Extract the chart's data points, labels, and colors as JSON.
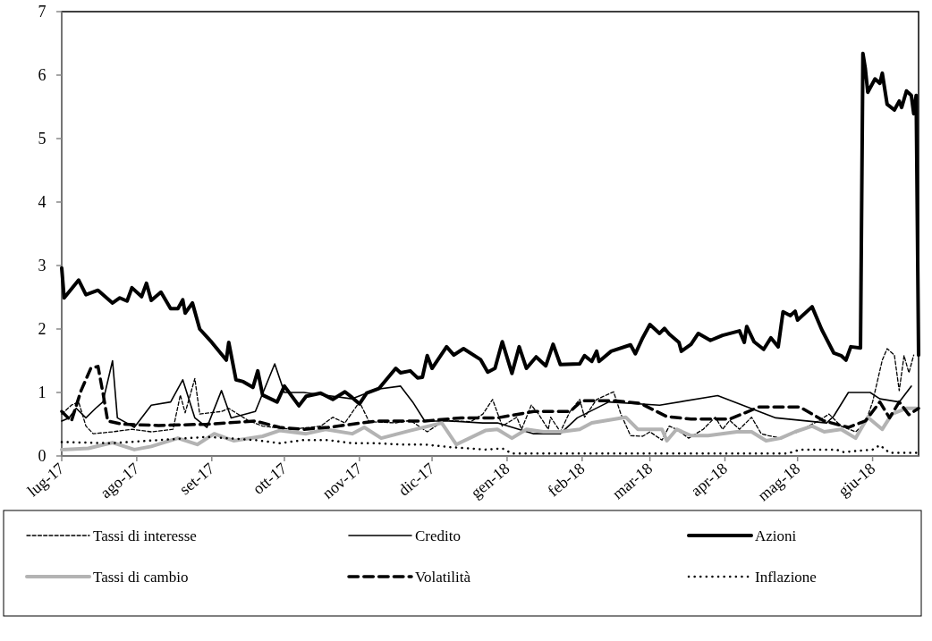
{
  "chart_data": {
    "type": "line",
    "xlim": [
      "2017-07-01",
      "2018-06-20"
    ],
    "xticks": [
      {
        "value": "2017-07-01",
        "label": "lug-17"
      },
      {
        "value": "2017-08-01",
        "label": "ago-17"
      },
      {
        "value": "2017-09-01",
        "label": "set-17"
      },
      {
        "value": "2017-10-01",
        "label": "ott-17"
      },
      {
        "value": "2017-11-01",
        "label": "nov-17"
      },
      {
        "value": "2017-12-01",
        "label": "dic-17"
      },
      {
        "value": "2018-01-01",
        "label": "gen-18"
      },
      {
        "value": "2018-02-01",
        "label": "feb-18"
      },
      {
        "value": "2018-03-01",
        "label": "mar-18"
      },
      {
        "value": "2018-04-01",
        "label": "apr-18"
      },
      {
        "value": "2018-05-01",
        "label": "mag-18"
      },
      {
        "value": "2018-06-01",
        "label": "giu-18"
      }
    ],
    "ylim": [
      0,
      7
    ],
    "yticks": [
      0,
      1,
      2,
      3,
      4,
      5,
      6,
      7
    ],
    "grid": false,
    "legend": "bottom",
    "series": [
      {
        "name": "Tassi di interesse",
        "color": "#000000",
        "line_style": "dashed",
        "x": [
          "2017-07-01",
          "2017-07-05",
          "2017-07-08",
          "2017-07-11",
          "2017-07-14",
          "2017-07-22",
          "2017-07-30",
          "2017-08-07",
          "2017-08-16",
          "2017-08-19",
          "2017-08-21",
          "2017-08-25",
          "2017-08-27",
          "2017-09-05",
          "2017-09-08",
          "2017-09-16",
          "2017-09-22",
          "2017-10-04",
          "2017-10-16",
          "2017-10-21",
          "2017-10-26",
          "2017-11-01",
          "2017-11-05",
          "2017-11-16",
          "2017-11-22",
          "2017-11-29",
          "2017-12-06",
          "2017-12-17",
          "2017-12-22",
          "2017-12-26",
          "2017-12-30",
          "2018-01-05",
          "2018-01-07",
          "2018-01-11",
          "2018-01-14",
          "2018-01-18",
          "2018-01-19",
          "2018-01-23",
          "2018-01-27",
          "2018-01-31",
          "2018-02-02",
          "2018-02-07",
          "2018-02-14",
          "2018-02-17",
          "2018-02-21",
          "2018-02-26",
          "2018-03-01",
          "2018-03-06",
          "2018-03-09",
          "2018-03-12",
          "2018-03-17",
          "2018-03-23",
          "2018-03-28",
          "2018-03-31",
          "2018-04-03",
          "2018-04-07",
          "2018-04-12",
          "2018-04-16",
          "2018-04-19",
          "2018-04-24",
          "2018-05-01",
          "2018-05-10",
          "2018-05-14",
          "2018-05-19",
          "2018-05-25",
          "2018-05-29",
          "2018-06-01",
          "2018-06-05",
          "2018-06-07",
          "2018-06-10",
          "2018-06-12",
          "2018-06-14",
          "2018-06-16",
          "2018-06-18"
        ],
        "values": [
          0.66,
          0.8,
          0.85,
          0.47,
          0.35,
          0.38,
          0.42,
          0.38,
          0.42,
          0.96,
          0.68,
          1.22,
          0.66,
          0.7,
          0.75,
          0.56,
          0.47,
          0.42,
          0.47,
          0.61,
          0.52,
          0.85,
          0.54,
          0.52,
          0.56,
          0.38,
          0.56,
          0.54,
          0.66,
          0.89,
          0.47,
          0.61,
          0.42,
          0.8,
          0.66,
          0.42,
          0.61,
          0.38,
          0.7,
          0.89,
          0.61,
          0.89,
          1.01,
          0.66,
          0.32,
          0.31,
          0.38,
          0.25,
          0.47,
          0.42,
          0.28,
          0.42,
          0.61,
          0.42,
          0.56,
          0.42,
          0.61,
          0.35,
          0.32,
          0.28,
          0.38,
          0.56,
          0.66,
          0.47,
          0.38,
          0.52,
          0.85,
          1.51,
          1.69,
          1.59,
          1.03,
          1.58,
          1.31,
          1.59
        ]
      },
      {
        "name": "Credito",
        "color": "#000000",
        "line_style": "solid",
        "x": [
          "2017-07-01",
          "2017-07-04",
          "2017-07-07",
          "2017-07-11",
          "2017-07-15",
          "2017-07-18",
          "2017-07-22",
          "2017-07-24",
          "2017-07-31",
          "2017-08-07",
          "2017-08-15",
          "2017-08-20",
          "2017-08-25",
          "2017-08-30",
          "2017-09-05",
          "2017-09-09",
          "2017-09-19",
          "2017-09-27",
          "2017-10-01",
          "2017-10-09",
          "2017-10-19",
          "2017-10-29",
          "2017-11-08",
          "2017-11-18",
          "2017-11-23",
          "2017-11-28",
          "2017-12-08",
          "2017-12-22",
          "2017-12-28",
          "2018-01-12",
          "2018-01-23",
          "2018-01-30",
          "2018-02-12",
          "2018-03-05",
          "2018-03-29",
          "2018-04-22",
          "2018-05-13",
          "2018-05-16",
          "2018-05-22",
          "2018-05-31",
          "2018-06-04",
          "2018-06-12",
          "2018-06-17"
        ],
        "values": [
          0.55,
          0.6,
          0.75,
          0.6,
          0.75,
          0.85,
          1.5,
          0.6,
          0.45,
          0.8,
          0.85,
          1.2,
          0.6,
          0.45,
          1.03,
          0.6,
          0.7,
          1.45,
          1.0,
          1.0,
          0.95,
          0.9,
          1.05,
          1.1,
          0.85,
          0.55,
          0.55,
          0.52,
          0.52,
          0.35,
          0.35,
          0.6,
          0.85,
          0.8,
          0.95,
          0.6,
          0.52,
          0.63,
          1.0,
          1.0,
          0.9,
          0.85,
          1.1
        ]
      },
      {
        "name": "Azioni",
        "color": "#000000",
        "line_style": "solid",
        "x": [
          "2017-07-01",
          "2017-07-02",
          "2017-07-08",
          "2017-07-11",
          "2017-07-16",
          "2017-07-22",
          "2017-07-25",
          "2017-07-28",
          "2017-07-30",
          "2017-08-03",
          "2017-08-05",
          "2017-08-07",
          "2017-08-11",
          "2017-08-15",
          "2017-08-18",
          "2017-08-20",
          "2017-08-21",
          "2017-08-24",
          "2017-08-27",
          "2017-09-01",
          "2017-09-07",
          "2017-09-08",
          "2017-09-11",
          "2017-09-14",
          "2017-09-18",
          "2017-09-20",
          "2017-09-22",
          "2017-09-28",
          "2017-10-01",
          "2017-10-07",
          "2017-10-10",
          "2017-10-16",
          "2017-10-21",
          "2017-10-26",
          "2017-10-29",
          "2017-11-01",
          "2017-11-04",
          "2017-11-09",
          "2017-11-16",
          "2017-11-18",
          "2017-11-22",
          "2017-11-25",
          "2017-11-27",
          "2017-11-29",
          "2017-12-01",
          "2017-12-07",
          "2017-12-10",
          "2017-12-14",
          "2017-12-21",
          "2017-12-24",
          "2017-12-27",
          "2017-12-30",
          "2018-01-03",
          "2018-01-06",
          "2018-01-09",
          "2018-01-13",
          "2018-01-17",
          "2018-01-20",
          "2018-01-23",
          "2018-01-31",
          "2018-02-02",
          "2018-02-05",
          "2018-02-07",
          "2018-02-08",
          "2018-02-13",
          "2018-02-21",
          "2018-02-23",
          "2018-02-26",
          "2018-03-01",
          "2018-03-05",
          "2018-03-07",
          "2018-03-09",
          "2018-03-13",
          "2018-03-14",
          "2018-03-18",
          "2018-03-21",
          "2018-03-26",
          "2018-03-31",
          "2018-04-07",
          "2018-04-09",
          "2018-04-10",
          "2018-04-13",
          "2018-04-17",
          "2018-04-20",
          "2018-04-23",
          "2018-04-25",
          "2018-04-28",
          "2018-04-30",
          "2018-05-01",
          "2018-05-07",
          "2018-05-11",
          "2018-05-16",
          "2018-05-19",
          "2018-05-21",
          "2018-05-23",
          "2018-05-27",
          "2018-05-28",
          "2018-05-29",
          "2018-05-30",
          "2018-06-02",
          "2018-06-04",
          "2018-06-05",
          "2018-06-07",
          "2018-06-10",
          "2018-06-12",
          "2018-06-13",
          "2018-06-15",
          "2018-06-17",
          "2018-06-18",
          "2018-06-19",
          "2018-06-20"
        ],
        "values": [
          2.96,
          2.49,
          2.77,
          2.54,
          2.61,
          2.41,
          2.49,
          2.44,
          2.65,
          2.51,
          2.72,
          2.45,
          2.58,
          2.32,
          2.32,
          2.46,
          2.25,
          2.41,
          2.0,
          1.79,
          1.51,
          1.79,
          1.2,
          1.17,
          1.08,
          1.34,
          0.96,
          0.85,
          1.1,
          0.79,
          0.94,
          0.99,
          0.89,
          1.01,
          0.92,
          0.82,
          0.99,
          1.06,
          1.38,
          1.31,
          1.34,
          1.23,
          1.24,
          1.58,
          1.38,
          1.72,
          1.59,
          1.69,
          1.52,
          1.32,
          1.38,
          1.8,
          1.3,
          1.72,
          1.38,
          1.56,
          1.42,
          1.76,
          1.44,
          1.45,
          1.58,
          1.49,
          1.65,
          1.49,
          1.65,
          1.75,
          1.61,
          1.86,
          2.07,
          1.93,
          2.01,
          1.92,
          1.79,
          1.65,
          1.76,
          1.93,
          1.82,
          1.9,
          1.97,
          1.79,
          2.04,
          1.8,
          1.68,
          1.86,
          1.72,
          2.27,
          2.21,
          2.28,
          2.14,
          2.35,
          1.99,
          1.62,
          1.58,
          1.51,
          1.72,
          1.7,
          6.34,
          6.1,
          5.73,
          5.94,
          5.87,
          6.03,
          5.54,
          5.45,
          5.59,
          5.49,
          5.75,
          5.68,
          5.39,
          5.68,
          1.59
        ]
      },
      {
        "name": "Tassi di cambio",
        "color": "#b3b3b3",
        "line_style": "solid",
        "x": [
          "2017-07-01",
          "2017-07-12",
          "2017-07-22",
          "2017-07-31",
          "2017-08-07",
          "2017-08-18",
          "2017-08-26",
          "2017-09-02",
          "2017-09-10",
          "2017-09-22",
          "2017-09-29",
          "2017-10-10",
          "2017-10-18",
          "2017-10-29",
          "2017-11-03",
          "2017-11-10",
          "2017-11-22",
          "2017-12-05",
          "2017-12-11",
          "2017-12-23",
          "2017-12-28",
          "2018-01-03",
          "2018-01-09",
          "2018-01-16",
          "2018-01-23",
          "2018-01-31",
          "2018-02-05",
          "2018-02-19",
          "2018-02-24",
          "2018-03-06",
          "2018-03-08",
          "2018-03-12",
          "2018-03-18",
          "2018-03-25",
          "2018-04-06",
          "2018-04-12",
          "2018-04-18",
          "2018-04-24",
          "2018-04-30",
          "2018-05-07",
          "2018-05-12",
          "2018-05-19",
          "2018-05-25",
          "2018-05-30",
          "2018-06-05",
          "2018-06-09",
          "2018-06-15",
          "2018-06-19"
        ],
        "values": [
          0.1,
          0.12,
          0.21,
          0.1,
          0.15,
          0.28,
          0.18,
          0.35,
          0.24,
          0.31,
          0.4,
          0.35,
          0.42,
          0.35,
          0.45,
          0.28,
          0.4,
          0.52,
          0.18,
          0.4,
          0.42,
          0.28,
          0.42,
          0.38,
          0.38,
          0.42,
          0.52,
          0.61,
          0.42,
          0.42,
          0.24,
          0.42,
          0.32,
          0.32,
          0.38,
          0.38,
          0.24,
          0.28,
          0.38,
          0.47,
          0.38,
          0.42,
          0.28,
          0.61,
          0.42,
          0.66,
          0.75,
          0.75
        ]
      },
      {
        "name": "Volatilità",
        "color": "#000000",
        "line_style": "dashed",
        "x": [
          "2017-07-01",
          "2017-07-05",
          "2017-07-09",
          "2017-07-13",
          "2017-07-16",
          "2017-07-18",
          "2017-07-20",
          "2017-07-26",
          "2017-08-10",
          "2017-08-30",
          "2017-09-19",
          "2017-09-29",
          "2017-10-09",
          "2017-10-19",
          "2017-10-29",
          "2017-11-08",
          "2017-11-28",
          "2017-12-13",
          "2017-12-28",
          "2018-01-12",
          "2018-01-27",
          "2018-02-01",
          "2018-02-14",
          "2018-02-25",
          "2018-03-08",
          "2018-03-18",
          "2018-04-03",
          "2018-04-15",
          "2018-05-02",
          "2018-05-12",
          "2018-05-22",
          "2018-05-29",
          "2018-06-04",
          "2018-06-08",
          "2018-06-12",
          "2018-06-16",
          "2018-06-20"
        ],
        "values": [
          0.7,
          0.55,
          1.03,
          1.38,
          1.41,
          1.0,
          0.55,
          0.5,
          0.48,
          0.5,
          0.55,
          0.45,
          0.42,
          0.45,
          0.5,
          0.55,
          0.55,
          0.6,
          0.6,
          0.7,
          0.7,
          0.87,
          0.87,
          0.83,
          0.62,
          0.58,
          0.58,
          0.77,
          0.77,
          0.55,
          0.45,
          0.55,
          0.85,
          0.6,
          0.85,
          0.65,
          0.75
        ]
      },
      {
        "name": "Inflazione",
        "color": "#000000",
        "line_style": "dotted",
        "x": [
          "2017-07-01",
          "2017-07-21",
          "2017-08-10",
          "2017-08-30",
          "2017-09-19",
          "2017-09-29",
          "2017-10-09",
          "2017-10-19",
          "2017-10-29",
          "2017-11-08",
          "2017-11-18",
          "2017-11-28",
          "2017-12-08",
          "2017-12-23",
          "2017-12-30",
          "2018-01-03",
          "2018-02-16",
          "2018-03-28",
          "2018-04-27",
          "2018-05-02",
          "2018-05-17",
          "2018-05-20",
          "2018-06-01",
          "2018-06-04",
          "2018-06-08",
          "2018-06-20"
        ],
        "values": [
          0.22,
          0.2,
          0.25,
          0.3,
          0.25,
          0.2,
          0.25,
          0.25,
          0.2,
          0.2,
          0.18,
          0.18,
          0.14,
          0.1,
          0.12,
          0.04,
          0.04,
          0.04,
          0.04,
          0.1,
          0.1,
          0.06,
          0.1,
          0.17,
          0.05,
          0.05
        ]
      }
    ]
  }
}
